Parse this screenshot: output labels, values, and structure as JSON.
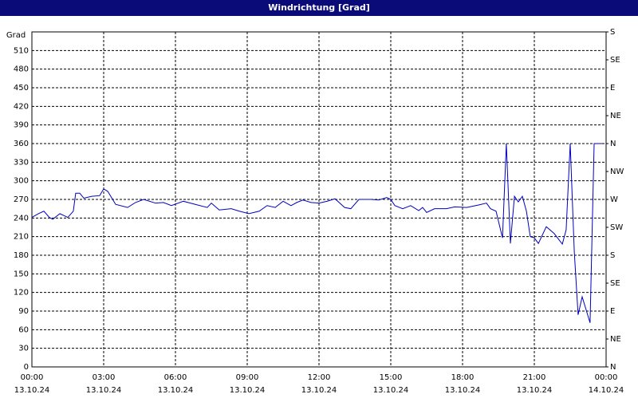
{
  "chart_data": {
    "type": "line",
    "title": "Windrichtung [Grad]",
    "ylabel": "Grad",
    "xlim": [
      0,
      24
    ],
    "xticks": [
      {
        "value": 0,
        "label": "00:00",
        "date": "13.10.24"
      },
      {
        "value": 3,
        "label": "03:00",
        "date": "13.10.24"
      },
      {
        "value": 6,
        "label": "06:00",
        "date": "13.10.24"
      },
      {
        "value": 9,
        "label": "09:00",
        "date": "13.10.24"
      },
      {
        "value": 12,
        "label": "12:00",
        "date": "13.10.24"
      },
      {
        "value": 15,
        "label": "15:00",
        "date": "13.10.24"
      },
      {
        "value": 18,
        "label": "18:00",
        "date": "13.10.24"
      },
      {
        "value": 21,
        "label": "21:00",
        "date": "13.10.24"
      },
      {
        "value": 24,
        "label": "00:00",
        "date": "14.10.24"
      }
    ],
    "ylim": [
      0,
      540
    ],
    "yticks": [
      0,
      30,
      60,
      90,
      120,
      150,
      180,
      210,
      240,
      270,
      300,
      330,
      360,
      390,
      420,
      450,
      480,
      510
    ],
    "y2lim": [
      0,
      540
    ],
    "y2ticks": [
      {
        "value": 0,
        "label": "N"
      },
      {
        "value": 45,
        "label": "NE"
      },
      {
        "value": 90,
        "label": "E"
      },
      {
        "value": 135,
        "label": "SE"
      },
      {
        "value": 180,
        "label": "S"
      },
      {
        "value": 225,
        "label": "SW"
      },
      {
        "value": 270,
        "label": "W"
      },
      {
        "value": 315,
        "label": "NW"
      },
      {
        "value": 360,
        "label": "N"
      },
      {
        "value": 405,
        "label": "NE"
      },
      {
        "value": 450,
        "label": "E"
      },
      {
        "value": 495,
        "label": "SE"
      },
      {
        "value": 540,
        "label": "S"
      }
    ],
    "grid": true,
    "color": "#0000c0",
    "x": [
      0,
      0.27,
      0.5,
      0.73,
      0.87,
      1.17,
      1.5,
      1.73,
      1.83,
      2,
      2.17,
      2.5,
      2.83,
      3,
      3.17,
      3.5,
      4,
      4.33,
      4.67,
      5.17,
      5.5,
      5.83,
      6.33,
      6.83,
      7.33,
      7.5,
      7.83,
      8.33,
      8.67,
      9.07,
      9.5,
      9.83,
      10.17,
      10.5,
      10.83,
      11.07,
      11.33,
      11.67,
      12,
      12.33,
      12.67,
      13.07,
      13.33,
      13.67,
      14.17,
      14.5,
      14.83,
      15,
      15.17,
      15.5,
      15.83,
      16.17,
      16.33,
      16.5,
      16.83,
      17.33,
      17.67,
      18.17,
      18.67,
      19,
      19.17,
      19.4,
      19.67,
      19.83,
      20,
      20.17,
      20.33,
      20.5,
      20.67,
      20.83,
      21,
      21.17,
      21.5,
      21.83,
      22.17,
      22.33,
      22.5,
      22.67,
      22.83,
      23,
      23.33,
      23.5,
      23.67,
      23.83
    ],
    "values": [
      241,
      247,
      251,
      241,
      238,
      247,
      241,
      251,
      280,
      280,
      272,
      275,
      276,
      287,
      283,
      262,
      257,
      265,
      270,
      264,
      265,
      260,
      267,
      262,
      257,
      264,
      253,
      255,
      251,
      247,
      251,
      260,
      257,
      267,
      260,
      265,
      269,
      265,
      264,
      267,
      271,
      257,
      255,
      270,
      270,
      269,
      273,
      270,
      260,
      255,
      260,
      252,
      257,
      249,
      255,
      255,
      258,
      257,
      261,
      264,
      255,
      251,
      208,
      360,
      199,
      275,
      266,
      275,
      251,
      210,
      208,
      199,
      226,
      215,
      198,
      221,
      360,
      186,
      84,
      113,
      71,
      360,
      360,
      360
    ]
  }
}
